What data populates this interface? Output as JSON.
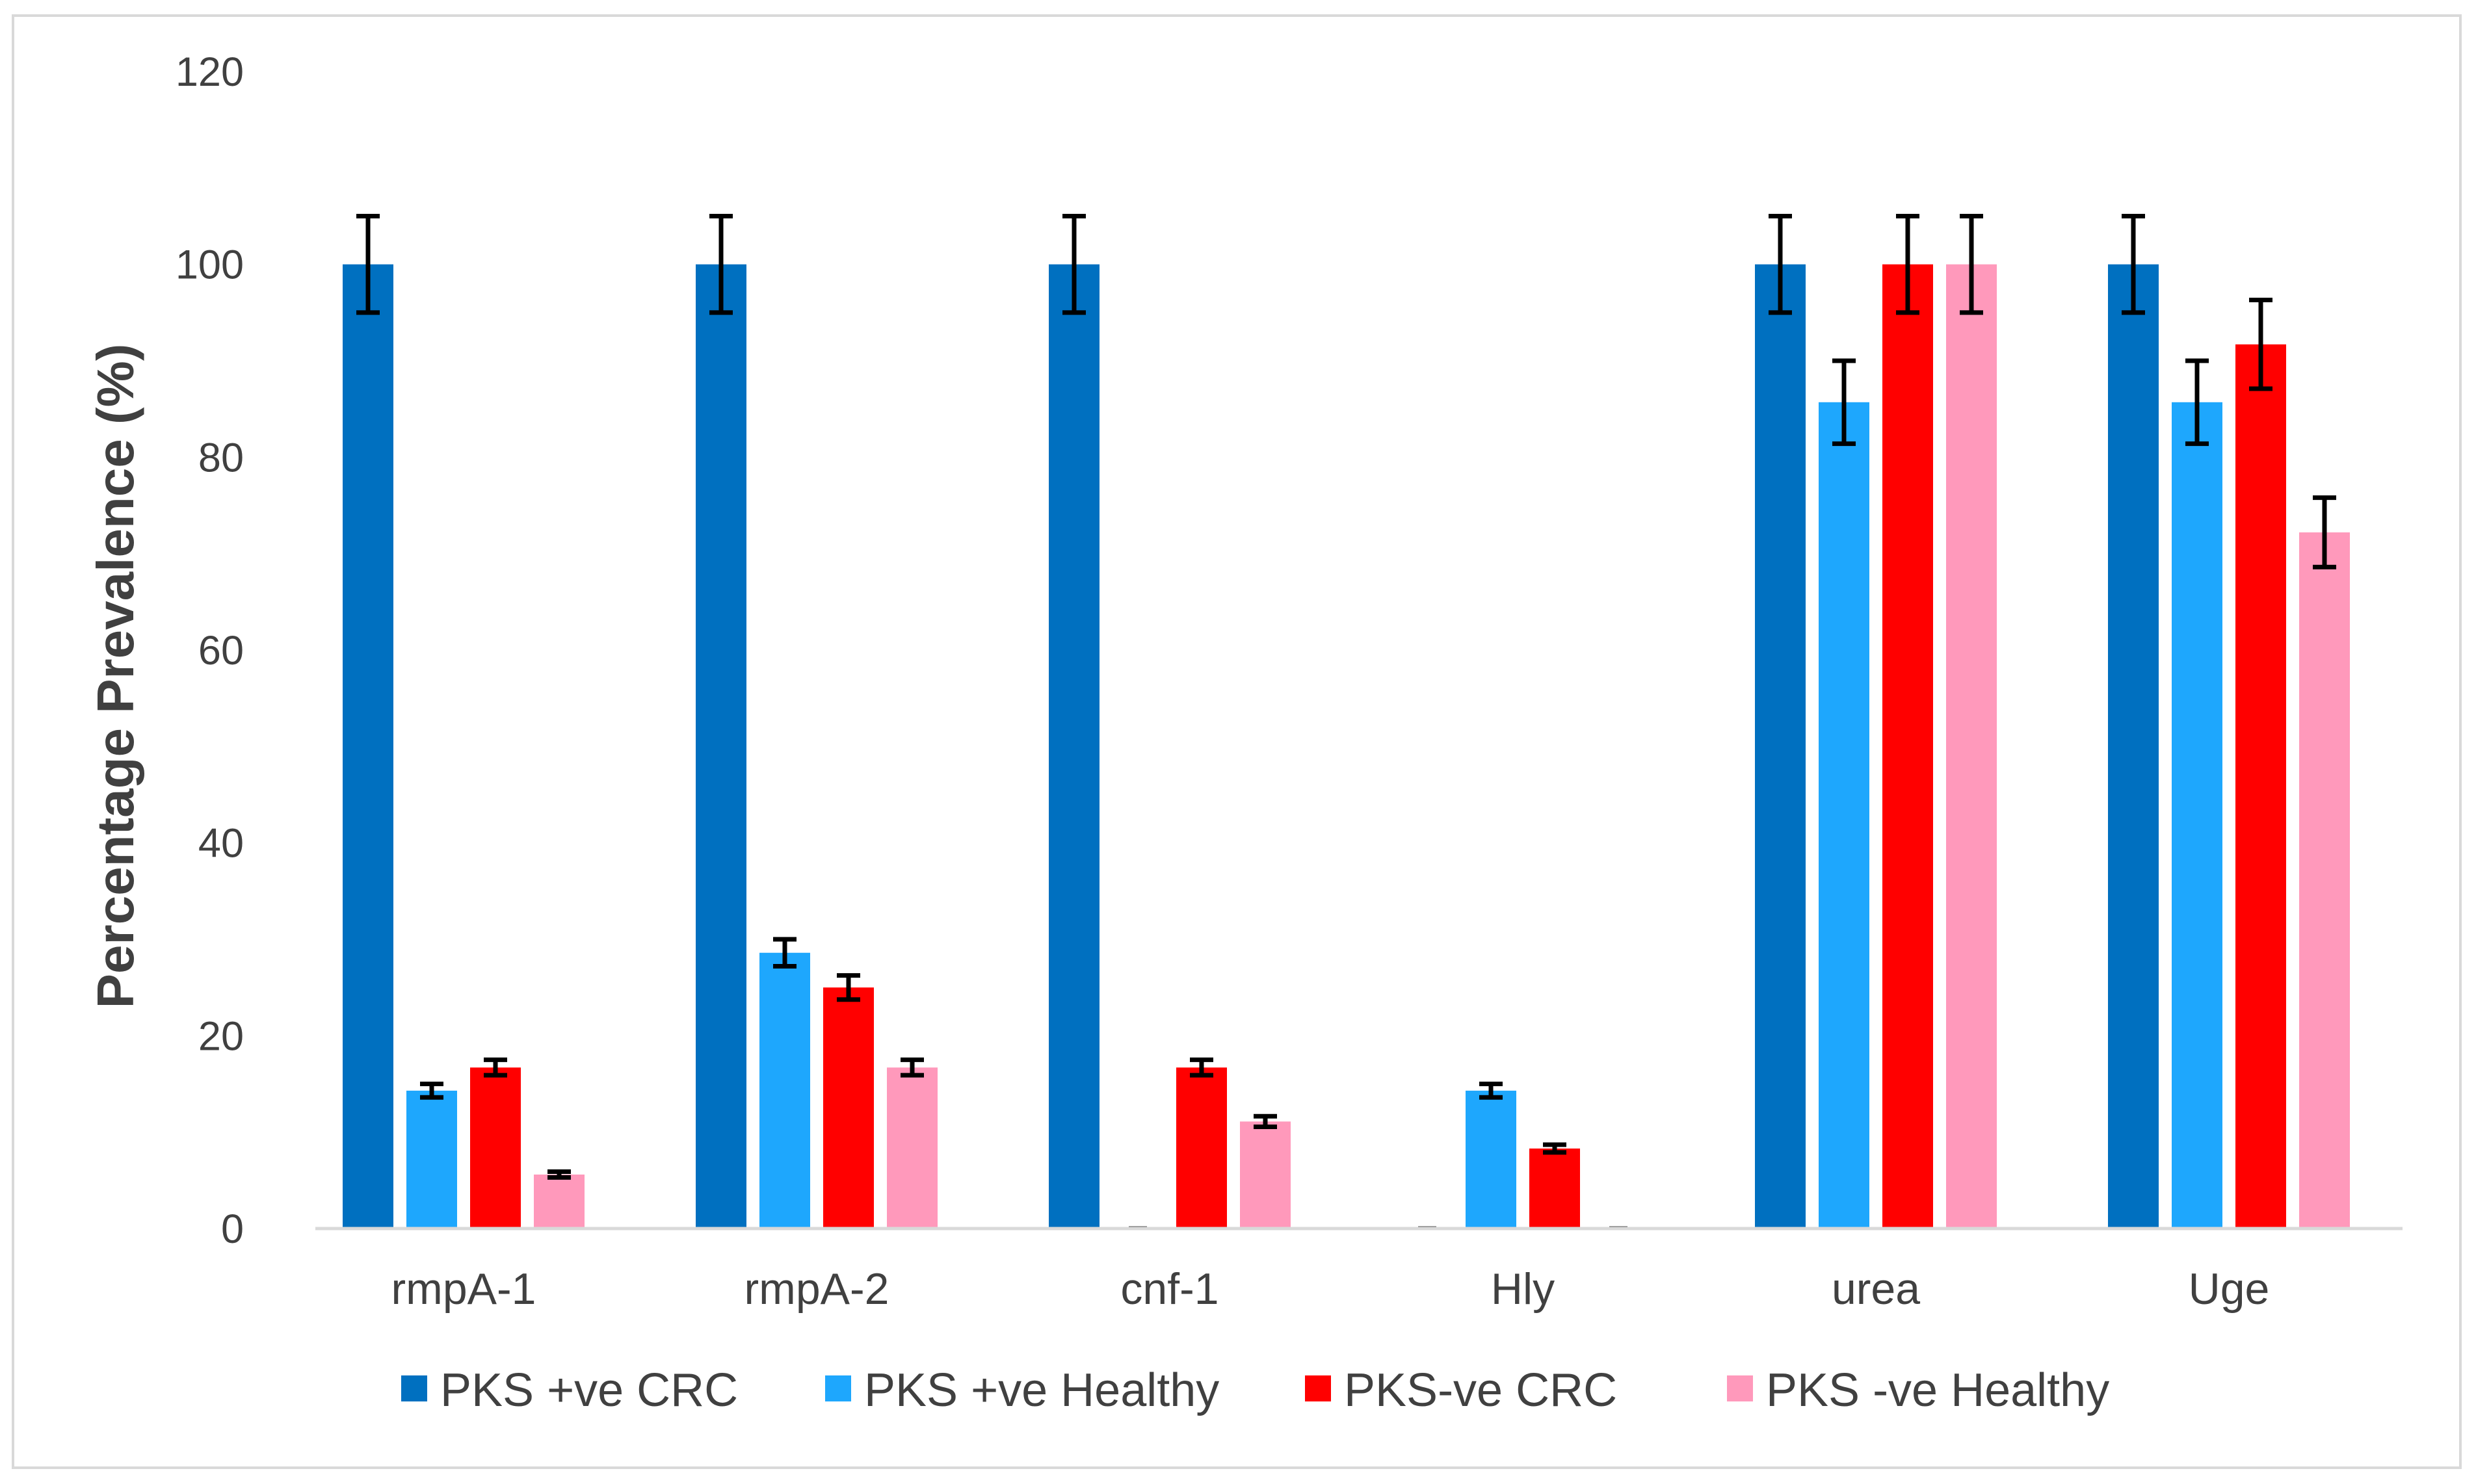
{
  "chart_data": {
    "type": "bar",
    "title": "",
    "xlabel": "",
    "ylabel": "Percentage Prevalence (%)",
    "ylim": [
      0,
      120
    ],
    "yticks": [
      "0",
      "20",
      "40",
      "60",
      "80",
      "100",
      "120"
    ],
    "grid": false,
    "legend_position": "bottom",
    "categories": [
      "rmpA-1",
      "rmpA-2",
      "cnf-1",
      "Hly",
      "urea",
      "Uge"
    ],
    "series": [
      {
        "name": "PKS +ve CRC",
        "color": "#0070c0",
        "values": [
          100,
          100,
          100,
          0,
          100,
          100
        ],
        "errors": [
          5,
          5,
          5,
          0,
          5,
          5
        ]
      },
      {
        "name": "PKS +ve Healthy",
        "color": "#1ea7fd",
        "values": [
          14.3,
          28.6,
          0,
          14.3,
          85.7,
          85.7
        ],
        "errors": [
          0.7,
          1.4,
          0,
          0.7,
          4.3,
          4.3
        ]
      },
      {
        "name": "PKS-ve CRC",
        "color": "#ff0000",
        "values": [
          16.7,
          25,
          16.7,
          8.3,
          100,
          91.7
        ],
        "errors": [
          0.8,
          1.25,
          0.8,
          0.4,
          5,
          4.6
        ]
      },
      {
        "name": "PKS -ve Healthy",
        "color": "#ff99bb",
        "values": [
          5.6,
          16.7,
          11.1,
          0,
          100,
          72.2
        ],
        "errors": [
          0.3,
          0.8,
          0.55,
          0,
          5,
          3.6
        ]
      }
    ]
  }
}
